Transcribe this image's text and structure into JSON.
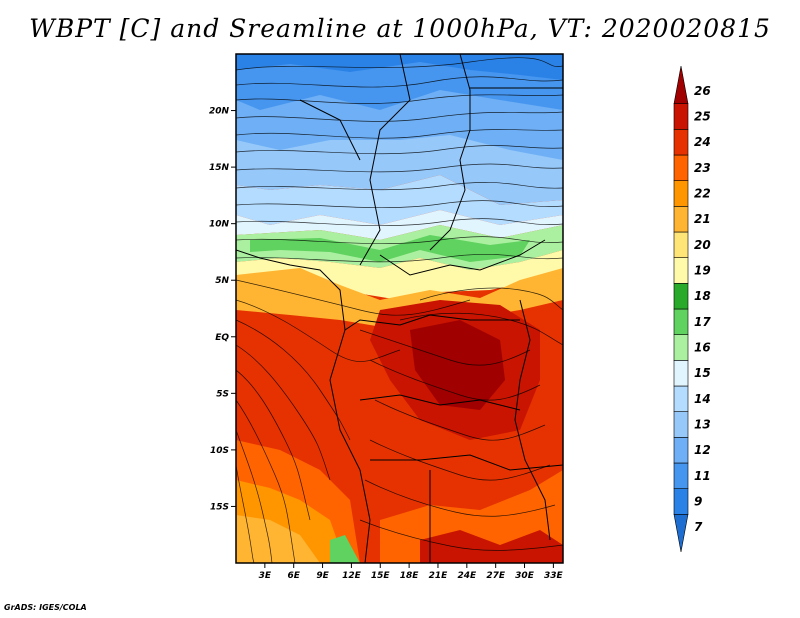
{
  "title": "WBPT [C] and Sreamline at 1000hPa, VT: 2020020815",
  "credit": "GrADS: IGES/COLA",
  "map": {
    "lat_ticks": [
      {
        "lat": 20,
        "label": "20N"
      },
      {
        "lat": 15,
        "label": "15N"
      },
      {
        "lat": 10,
        "label": "10N"
      },
      {
        "lat": 5,
        "label": "5N"
      },
      {
        "lat": 0,
        "label": "EQ"
      },
      {
        "lat": -5,
        "label": "5S"
      },
      {
        "lat": -10,
        "label": "10S"
      },
      {
        "lat": -15,
        "label": "15S"
      }
    ],
    "lon_ticks": [
      {
        "lon": 3,
        "label": "3E"
      },
      {
        "lon": 6,
        "label": "6E"
      },
      {
        "lon": 9,
        "label": "9E"
      },
      {
        "lon": 12,
        "label": "12E"
      },
      {
        "lon": 15,
        "label": "15E"
      },
      {
        "lon": 18,
        "label": "18E"
      },
      {
        "lon": 21,
        "label": "21E"
      },
      {
        "lon": 24,
        "label": "24E"
      },
      {
        "lon": 27,
        "label": "27E"
      },
      {
        "lon": 30,
        "label": "30E"
      },
      {
        "lon": 33,
        "label": "33E"
      }
    ],
    "lon_range": [
      0,
      34
    ],
    "lat_range": [
      -20,
      25
    ]
  },
  "colorbar": {
    "labels": [
      "7",
      "9",
      "11",
      "12",
      "13",
      "14",
      "15",
      "16",
      "17",
      "18",
      "19",
      "20",
      "21",
      "22",
      "23",
      "24",
      "25",
      "26"
    ],
    "colors": [
      "#1e6ed2",
      "#2b82e6",
      "#4696f0",
      "#6eaff5",
      "#96c8fa",
      "#b4dcff",
      "#e1f5ff",
      "#aaf0a0",
      "#5fd25f",
      "#2aaa2a",
      "#fffaaa",
      "#ffe478",
      "#ffb432",
      "#ff9600",
      "#ff6400",
      "#e63200",
      "#c81400",
      "#a00000"
    ]
  }
}
